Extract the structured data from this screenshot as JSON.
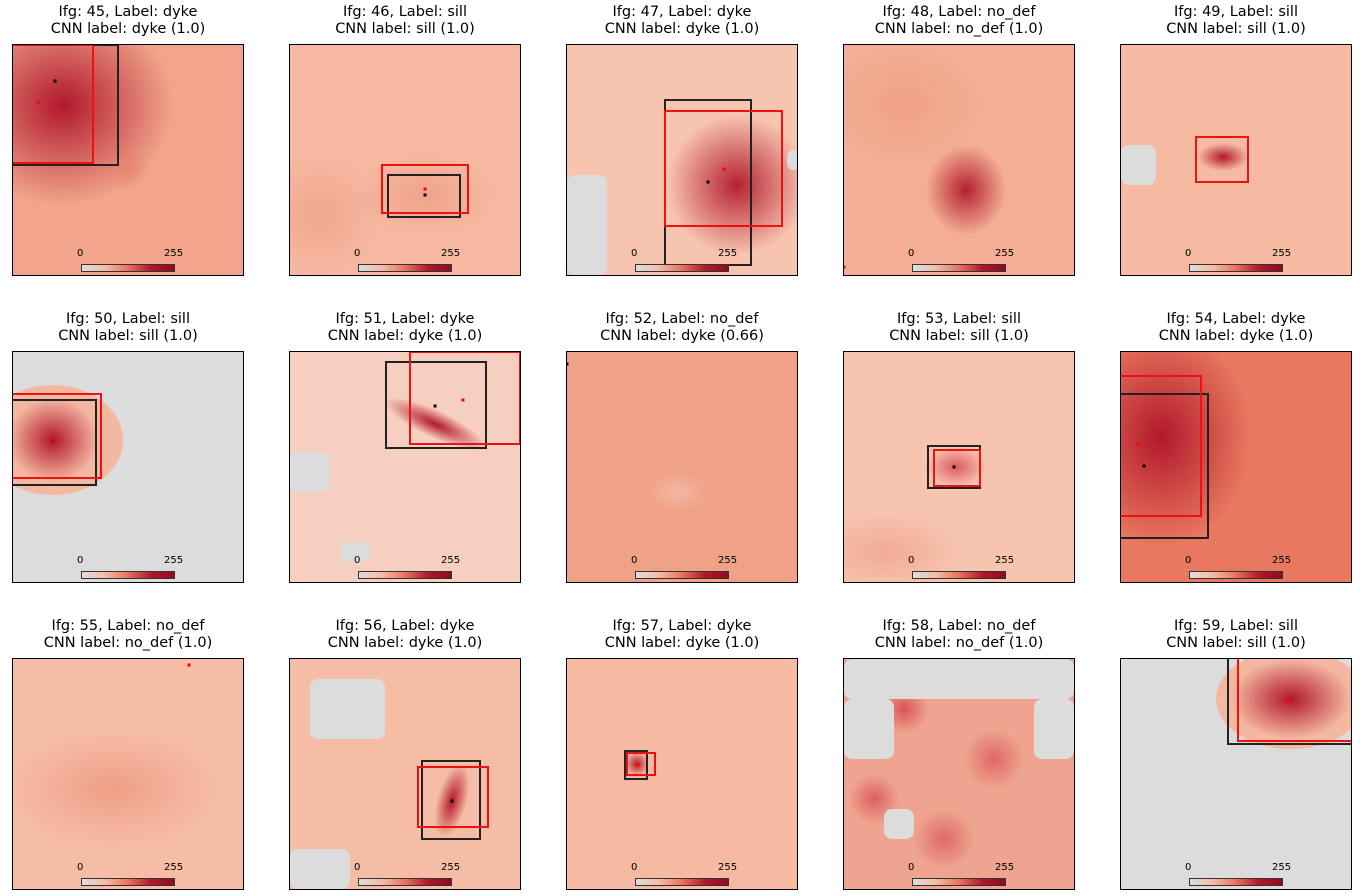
{
  "chart_data": [
    {
      "ifg": 45,
      "label": "dyke",
      "cnn": "dyke (1.0)",
      "title1": "Ifg: 45, Label: dyke",
      "title2": "CNN label: dyke (1.0)",
      "colorbar_ticks": [
        "0",
        "255"
      ]
    },
    {
      "ifg": 46,
      "label": "sill",
      "cnn": "sill (1.0)",
      "title1": "Ifg: 46, Label: sill",
      "title2": "CNN label: sill (1.0)",
      "colorbar_ticks": [
        "0",
        "255"
      ]
    },
    {
      "ifg": 47,
      "label": "dyke",
      "cnn": "dyke (1.0)",
      "title1": "Ifg: 47, Label: dyke",
      "title2": "CNN label: dyke (1.0)",
      "colorbar_ticks": [
        "0",
        "255"
      ]
    },
    {
      "ifg": 48,
      "label": "no_def",
      "cnn": "no_def (1.0)",
      "title1": "Ifg: 48, Label: no_def",
      "title2": "CNN label: no_def (1.0)",
      "colorbar_ticks": [
        "0",
        "255"
      ]
    },
    {
      "ifg": 49,
      "label": "sill",
      "cnn": "sill (1.0)",
      "title1": "Ifg: 49, Label: sill",
      "title2": "CNN label: sill (1.0)",
      "colorbar_ticks": [
        "0",
        "255"
      ]
    },
    {
      "ifg": 50,
      "label": "sill",
      "cnn": "sill (1.0)",
      "title1": "Ifg: 50, Label: sill",
      "title2": "CNN label: sill (1.0)",
      "colorbar_ticks": [
        "0",
        "255"
      ]
    },
    {
      "ifg": 51,
      "label": "dyke",
      "cnn": "dyke (1.0)",
      "title1": "Ifg: 51, Label: dyke",
      "title2": "CNN label: dyke (1.0)",
      "colorbar_ticks": [
        "0",
        "255"
      ]
    },
    {
      "ifg": 52,
      "label": "no_def",
      "cnn": "dyke (0.66)",
      "title1": "Ifg: 52, Label: no_def",
      "title2": "CNN label: dyke (0.66)",
      "colorbar_ticks": [
        "0",
        "255"
      ]
    },
    {
      "ifg": 53,
      "label": "sill",
      "cnn": "sill (1.0)",
      "title1": "Ifg: 53, Label: sill",
      "title2": "CNN label: sill (1.0)",
      "colorbar_ticks": [
        "0",
        "255"
      ]
    },
    {
      "ifg": 54,
      "label": "dyke",
      "cnn": "dyke (1.0)",
      "title1": "Ifg: 54, Label: dyke",
      "title2": "CNN label: dyke (1.0)",
      "colorbar_ticks": [
        "0",
        "255"
      ]
    },
    {
      "ifg": 55,
      "label": "no_def",
      "cnn": "no_def (1.0)",
      "title1": "Ifg: 55, Label: no_def",
      "title2": "CNN label: no_def (1.0)",
      "colorbar_ticks": [
        "0",
        "255"
      ]
    },
    {
      "ifg": 56,
      "label": "dyke",
      "cnn": "dyke (1.0)",
      "title1": "Ifg: 56, Label: dyke",
      "title2": "CNN label: dyke (1.0)",
      "colorbar_ticks": [
        "0",
        "255"
      ]
    },
    {
      "ifg": 57,
      "label": "dyke",
      "cnn": "dyke (1.0)",
      "title1": "Ifg: 57, Label: dyke",
      "title2": "CNN label: dyke (1.0)",
      "colorbar_ticks": [
        "0",
        "255"
      ]
    },
    {
      "ifg": 58,
      "label": "no_def",
      "cnn": "no_def (1.0)",
      "title1": "Ifg: 58, Label: no_def",
      "title2": "CNN label: no_def (1.0)",
      "colorbar_ticks": [
        "0",
        "255"
      ]
    },
    {
      "ifg": 59,
      "label": "sill",
      "cnn": "sill (1.0)",
      "title1": "Ifg: 59, Label: sill",
      "title2": "CNN label: sill (1.0)",
      "colorbar_ticks": [
        "0",
        "255"
      ]
    }
  ],
  "colors": {
    "background": "#f4b8a1",
    "nodata": "#dcdcdc",
    "deformation_max": "#b2182b",
    "true_box": "#222222",
    "cnn_box": "#ee1111"
  }
}
